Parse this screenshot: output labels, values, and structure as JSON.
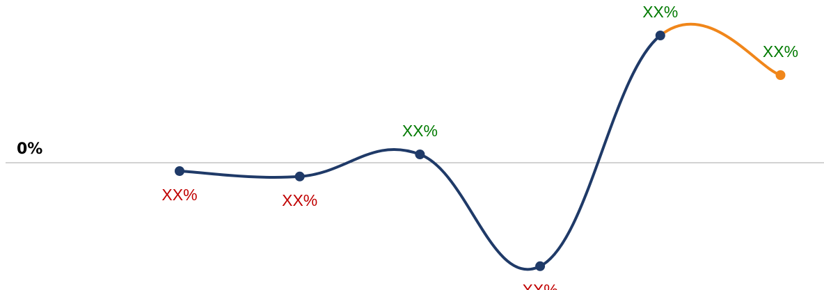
{
  "chart_data": {
    "type": "line",
    "title": "",
    "xlabel": "",
    "ylabel": "",
    "y_tick_labels": [
      "0%"
    ],
    "grid": false,
    "legend": "none",
    "ylim": [
      -2.6,
      3.3
    ],
    "points": [
      {
        "x": 1,
        "y": -0.2,
        "label": "XX%",
        "label_position": "below",
        "label_color": "#c00000",
        "series": "actual"
      },
      {
        "x": 2,
        "y": -0.33,
        "label": "XX%",
        "label_position": "below",
        "label_color": "#c00000",
        "series": "actual"
      },
      {
        "x": 3,
        "y": 0.2,
        "label": "XX%",
        "label_position": "above",
        "label_color": "#007a00",
        "series": "actual"
      },
      {
        "x": 4,
        "y": -2.48,
        "label": "XX%",
        "label_position": "below",
        "label_color": "#c00000",
        "series": "actual"
      },
      {
        "x": 5,
        "y": 3.05,
        "label": "XX%",
        "label_position": "above",
        "label_color": "#007a00",
        "series": "actual"
      },
      {
        "x": 6,
        "y": 2.1,
        "label": "XX%",
        "label_position": "above",
        "label_color": "#007a00",
        "series": "projected"
      }
    ],
    "series_colors": {
      "actual": "#1f3a68",
      "projected": "#f0861a"
    },
    "baseline_color": "#a6a6a6"
  }
}
